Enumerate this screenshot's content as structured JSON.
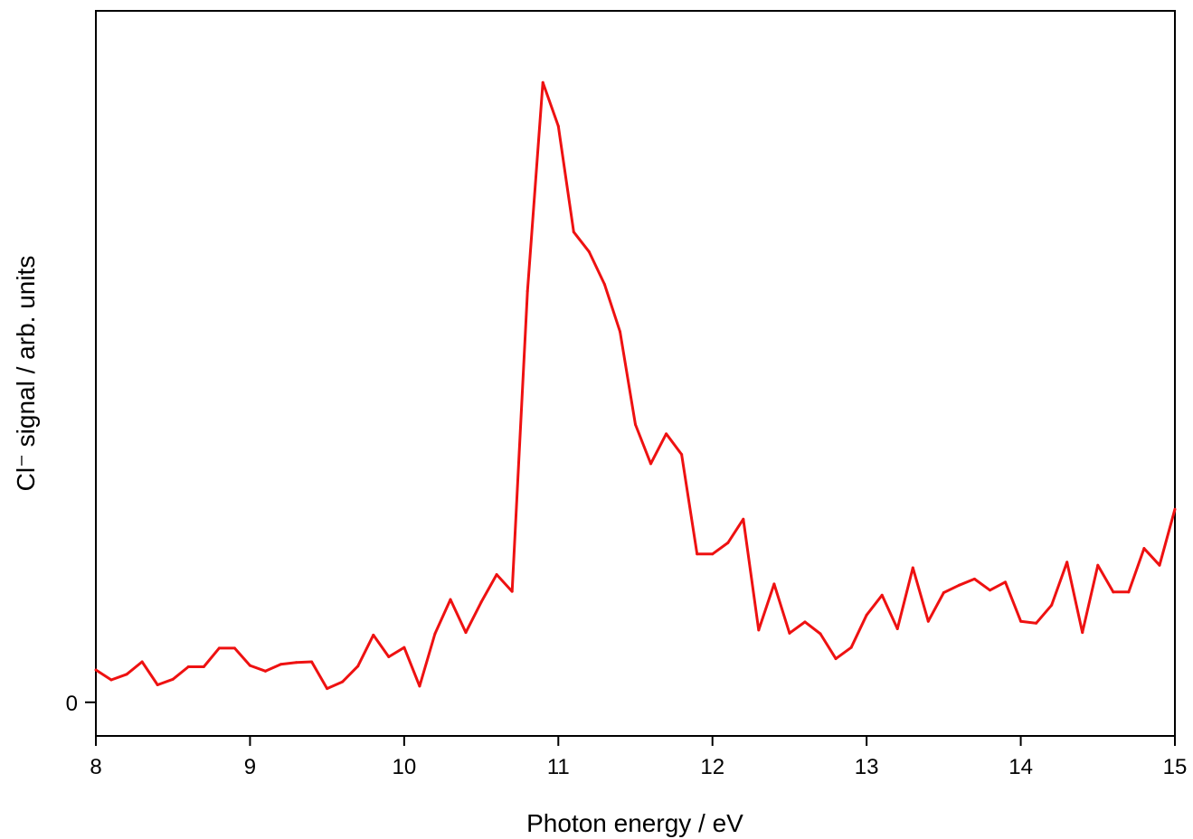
{
  "chart_data": {
    "type": "line",
    "title": "",
    "xlabel": "Photon energy / eV",
    "ylabel": "Cl⁻ signal / arb. units",
    "xlim": [
      8,
      15
    ],
    "ylim": [
      -0.054,
      1.11
    ],
    "x_ticks": [
      8,
      9,
      10,
      11,
      12,
      13,
      14,
      15
    ],
    "x_tick_labels": [
      "8",
      "9",
      "10",
      "11",
      "12",
      "13",
      "14",
      "15"
    ],
    "y_ticks": [
      0
    ],
    "y_tick_labels": [
      "0"
    ],
    "grid": false,
    "legend": "none",
    "series": [
      {
        "color": "#ee1111",
        "x": [
          8.0,
          8.1,
          8.2,
          8.3,
          8.4,
          8.5,
          8.6,
          8.7,
          8.8,
          8.9,
          9.0,
          9.1,
          9.2,
          9.3,
          9.4,
          9.5,
          9.6,
          9.7,
          9.8,
          9.9,
          10.0,
          10.1,
          10.2,
          10.3,
          10.4,
          10.5,
          10.6,
          10.7,
          10.8,
          10.9,
          11.0,
          11.1,
          11.2,
          11.3,
          11.4,
          11.5,
          11.6,
          11.7,
          11.8,
          11.9,
          12.0,
          12.1,
          12.2,
          12.3,
          12.4,
          12.5,
          12.6,
          12.7,
          12.8,
          12.9,
          13.0,
          13.1,
          13.2,
          13.3,
          13.4,
          13.5,
          13.6,
          13.7,
          13.8,
          13.9,
          14.0,
          14.1,
          14.2,
          14.3,
          14.4,
          14.5,
          14.6,
          14.7,
          14.8,
          14.9,
          15.0
        ],
        "y": [
          0.052,
          0.036,
          0.045,
          0.065,
          0.028,
          0.037,
          0.057,
          0.057,
          0.087,
          0.087,
          0.059,
          0.05,
          0.061,
          0.064,
          0.065,
          0.022,
          0.033,
          0.058,
          0.108,
          0.073,
          0.088,
          0.026,
          0.11,
          0.165,
          0.112,
          0.161,
          0.205,
          0.178,
          0.66,
          0.995,
          0.925,
          0.755,
          0.723,
          0.671,
          0.595,
          0.446,
          0.383,
          0.431,
          0.398,
          0.238,
          0.238,
          0.256,
          0.294,
          0.116,
          0.19,
          0.111,
          0.129,
          0.11,
          0.07,
          0.088,
          0.14,
          0.172,
          0.118,
          0.216,
          0.13,
          0.176,
          0.188,
          0.198,
          0.18,
          0.193,
          0.13,
          0.127,
          0.156,
          0.225,
          0.112,
          0.22,
          0.177,
          0.177,
          0.247,
          0.22,
          0.31
        ]
      }
    ]
  }
}
